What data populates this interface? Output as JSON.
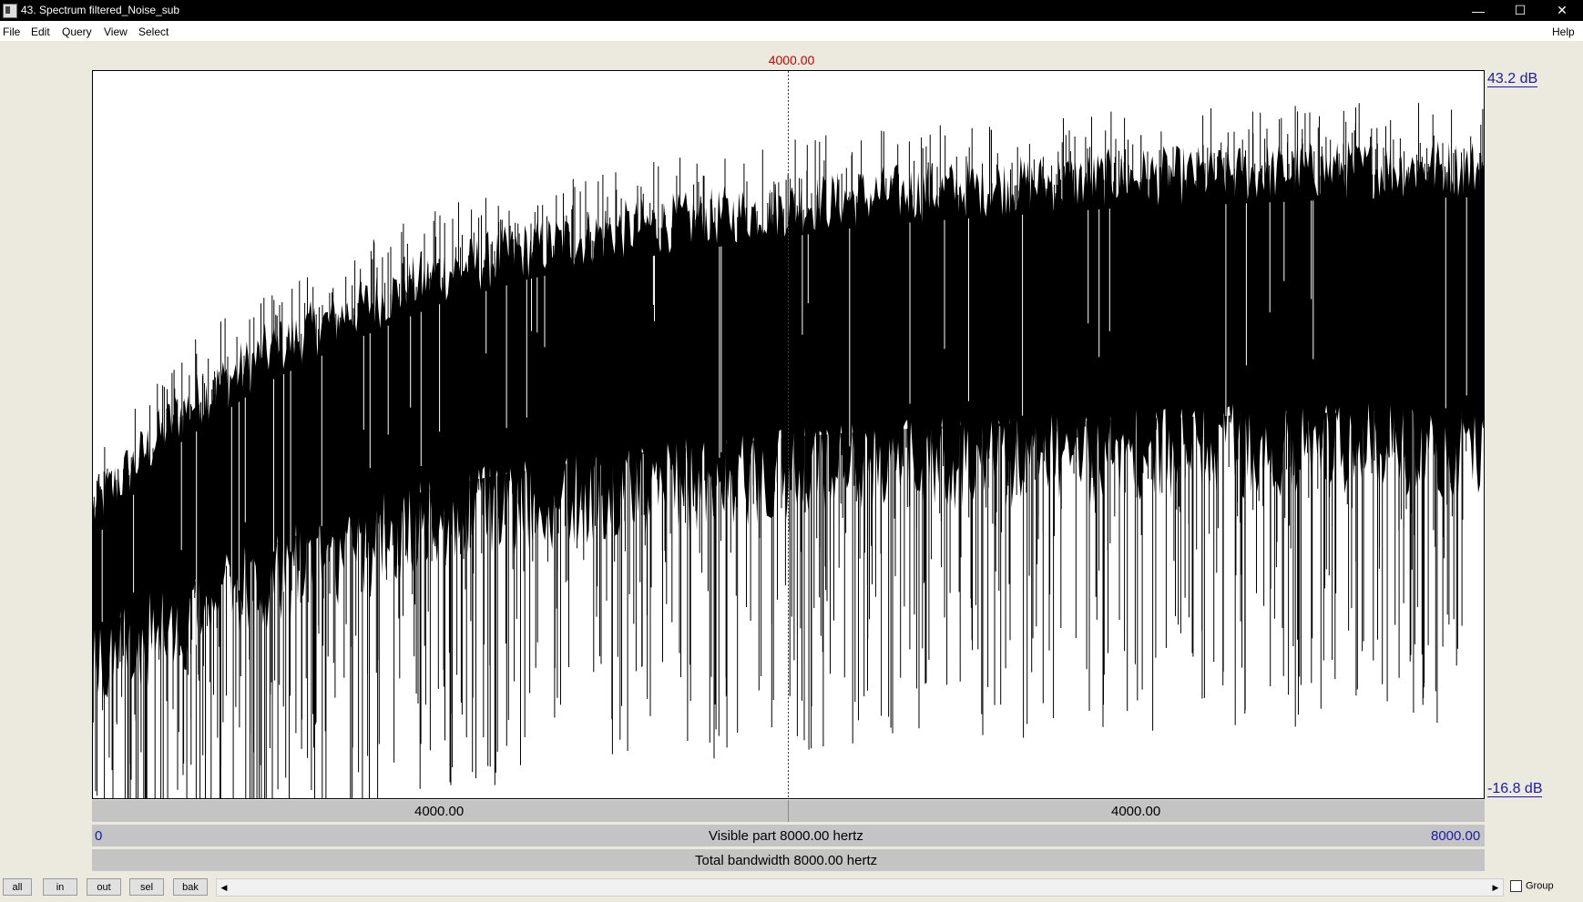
{
  "window": {
    "title": "43. Spectrum filtered_Noise_sub",
    "minimize_glyph": "—",
    "maximize_glyph": "☐",
    "close_glyph": "✕"
  },
  "menu": {
    "left": [
      "File",
      "Edit",
      "Query",
      "View",
      "Select"
    ],
    "right": "Help"
  },
  "cursor": {
    "label": "4000.00",
    "color": "#cc0000"
  },
  "axis": {
    "top_db": "43.2 dB",
    "bottom_db": "-16.8 dB"
  },
  "bars": {
    "segment_left": "4000.00",
    "segment_right": "4000.00",
    "visible_start": "0",
    "visible_label": "Visible part 8000.00 hertz",
    "visible_end": "8000.00",
    "total_label": "Total bandwidth 8000.00 hertz"
  },
  "toolbar": {
    "buttons": [
      "all",
      "in",
      "out",
      "sel",
      "bak"
    ],
    "scroll_left": "◀",
    "scroll_right": "▶",
    "group_label": "Group"
  },
  "chart_data": {
    "type": "line",
    "x_unit": "hertz",
    "xlim": [
      0,
      8000
    ],
    "ylim": [
      -16.8,
      43.2
    ],
    "cursor_x": 4000,
    "upper_envelope": {
      "x": [
        0,
        500,
        1000,
        1500,
        2000,
        2500,
        3000,
        3500,
        4000,
        4500,
        5000,
        5500,
        6000,
        6500,
        7000,
        7500,
        8000
      ],
      "y": [
        10.5,
        18.5,
        23.5,
        27,
        30,
        32,
        33.5,
        34.5,
        35.5,
        36.5,
        37,
        37.5,
        38,
        38.2,
        38.5,
        38.7,
        38.8
      ]
    },
    "body_lower": {
      "x": [
        0,
        1000,
        2000,
        3000,
        4000,
        5000,
        6000,
        7000,
        8000
      ],
      "y": [
        -6,
        1,
        6,
        8.5,
        10,
        11,
        11.5,
        12,
        12
      ]
    }
  }
}
